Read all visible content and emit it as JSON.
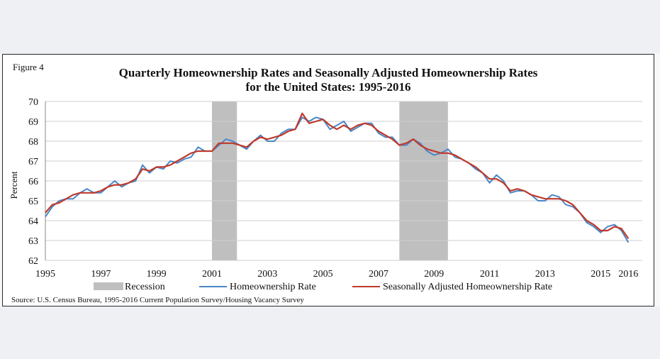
{
  "chart_data": {
    "type": "line",
    "figure_label": "Figure 4",
    "title_line1": "Quarterly Homeownership Rates and Seasonally Adjusted Homeownership Rates",
    "title_line2": "for the United States: 1995-2016",
    "ylabel": "Percent",
    "ylim": [
      62,
      70
    ],
    "yticks": [
      62,
      63,
      64,
      65,
      66,
      67,
      68,
      69,
      70
    ],
    "xlim": [
      1995,
      2016.5
    ],
    "xticks": [
      "1995",
      "1997",
      "1999",
      "2001",
      "2003",
      "2005",
      "2007",
      "2009",
      "2011",
      "2013",
      "2015",
      "2016"
    ],
    "grid": "horizontal",
    "legend_position": "bottom",
    "recessions": [
      {
        "start": 2001.0,
        "end": 2001.9
      },
      {
        "start": 2007.75,
        "end": 2009.5
      }
    ],
    "legend": {
      "recession": "Recession",
      "homeownership": "Homeownership Rate",
      "adjusted": "Seasonally Adjusted Homeownership Rate"
    },
    "series": [
      {
        "name": "Homeownership Rate",
        "color": "#4a86c8",
        "values": [
          64.2,
          64.7,
          65.0,
          65.1,
          65.1,
          65.4,
          65.6,
          65.4,
          65.4,
          65.7,
          66.0,
          65.7,
          65.9,
          66.0,
          66.8,
          66.4,
          66.7,
          66.6,
          67.0,
          66.9,
          67.1,
          67.2,
          67.7,
          67.5,
          67.5,
          67.8,
          68.1,
          68.0,
          67.8,
          67.6,
          68.0,
          68.3,
          68.0,
          68.0,
          68.4,
          68.6,
          68.6,
          69.2,
          69.0,
          69.2,
          69.1,
          68.6,
          68.8,
          69.0,
          68.5,
          68.7,
          68.9,
          68.9,
          68.4,
          68.2,
          68.2,
          67.8,
          67.8,
          68.1,
          67.9,
          67.5,
          67.3,
          67.4,
          67.6,
          67.2,
          67.1,
          66.9,
          66.6,
          66.4,
          65.9,
          66.3,
          66.0,
          65.4,
          65.5,
          65.5,
          65.3,
          65.0,
          65.0,
          65.3,
          65.2,
          64.8,
          64.7,
          64.4,
          63.9,
          63.7,
          63.4,
          63.7,
          63.8,
          63.5,
          62.9
        ],
        "x_start": 1995.0,
        "x_step": 0.25
      },
      {
        "name": "Seasonally Adjusted Homeownership Rate",
        "color": "#c0392b",
        "values": [
          64.4,
          64.8,
          64.9,
          65.1,
          65.3,
          65.4,
          65.4,
          65.4,
          65.5,
          65.7,
          65.8,
          65.8,
          65.9,
          66.1,
          66.6,
          66.5,
          66.7,
          66.7,
          66.8,
          67.0,
          67.2,
          67.4,
          67.5,
          67.5,
          67.5,
          67.9,
          67.9,
          67.9,
          67.8,
          67.7,
          68.0,
          68.2,
          68.1,
          68.2,
          68.3,
          68.5,
          68.6,
          69.4,
          68.9,
          69.0,
          69.1,
          68.8,
          68.6,
          68.8,
          68.6,
          68.8,
          68.9,
          68.8,
          68.5,
          68.3,
          68.1,
          67.8,
          67.9,
          68.1,
          67.8,
          67.6,
          67.5,
          67.4,
          67.4,
          67.3,
          67.1,
          66.9,
          66.7,
          66.4,
          66.1,
          66.1,
          65.9,
          65.5,
          65.6,
          65.5,
          65.3,
          65.2,
          65.1,
          65.1,
          65.1,
          65.0,
          64.8,
          64.4,
          64.0,
          63.8,
          63.5,
          63.5,
          63.7,
          63.6,
          63.1
        ],
        "x_start": 1995.0,
        "x_step": 0.25
      }
    ],
    "source": "Source: U.S. Census Bureau, 1995-2016 Current Population Survey/Housing Vacancy Survey"
  }
}
